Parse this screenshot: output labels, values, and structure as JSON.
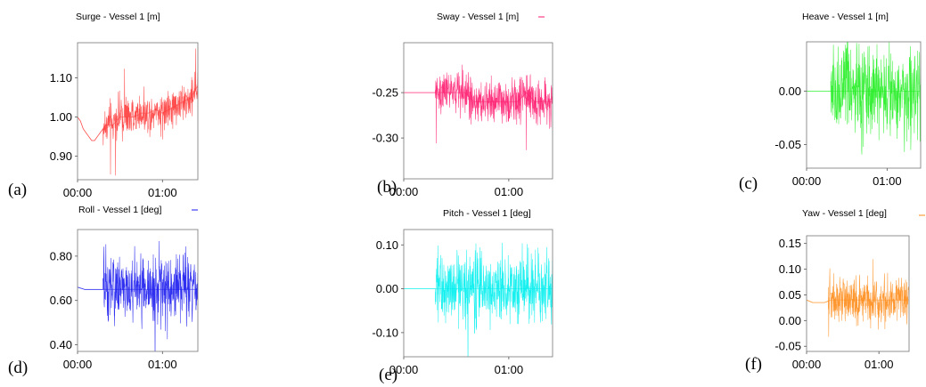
{
  "chart_data": [
    {
      "type": "line",
      "panel_label": "(a)",
      "title": "Surge - Vessel 1 [m]",
      "xlabel": "",
      "ylabel": "",
      "xlim": [
        0,
        85
      ],
      "ylim": [
        0.84,
        1.19
      ],
      "xticks": [
        "00:00",
        "01:00"
      ],
      "yticks": [
        0.9,
        1.0,
        1.1
      ],
      "ytick_labels": [
        "0.90",
        "1.00",
        "1.10"
      ],
      "color": "#ff3b3b",
      "grid": false,
      "legend": "none",
      "series": [
        {
          "x": [
            0,
            2,
            4,
            6,
            8,
            10,
            12,
            14,
            16,
            18,
            20,
            25,
            30,
            35,
            40,
            45,
            50,
            55,
            60,
            65,
            70,
            75,
            80,
            85
          ],
          "y": [
            1.0,
            0.99,
            0.97,
            0.96,
            0.95,
            0.94,
            0.94,
            0.95,
            0.96,
            0.97,
            0.98,
            0.98,
            1.0,
            1.0,
            1.0,
            1.01,
            1.01,
            1.02,
            1.01,
            1.02,
            1.03,
            1.04,
            1.05,
            1.08
          ]
        }
      ]
    },
    {
      "type": "line",
      "panel_label": "(b)",
      "title": "Sway - Vessel 1 [m]",
      "xlabel": "",
      "ylabel": "",
      "xlim": [
        0,
        85
      ],
      "ylim": [
        -0.345,
        -0.195
      ],
      "xticks": [
        "00:00",
        "01:00"
      ],
      "yticks": [
        -0.25,
        -0.3
      ],
      "ytick_labels": [
        "-0.25",
        "-0.30"
      ],
      "color": "#ff1a6e",
      "grid": false,
      "legend": "top-right",
      "series": [
        {
          "x": [
            0,
            5,
            10,
            15,
            20,
            25,
            30,
            35,
            40,
            45,
            50,
            55,
            60,
            65,
            70,
            75,
            80,
            85
          ],
          "y": [
            -0.25,
            -0.25,
            -0.25,
            -0.25,
            -0.25,
            -0.25,
            -0.25,
            -0.25,
            -0.26,
            -0.26,
            -0.26,
            -0.26,
            -0.26,
            -0.26,
            -0.25,
            -0.26,
            -0.26,
            -0.26
          ]
        }
      ]
    },
    {
      "type": "line",
      "panel_label": "(c)",
      "title": "Heave - Vessel 1 [m]",
      "xlabel": "",
      "ylabel": "",
      "xlim": [
        0,
        85
      ],
      "ylim": [
        -0.072,
        0.046
      ],
      "xticks": [
        "00:00",
        "01:00"
      ],
      "yticks": [
        0.0,
        -0.05
      ],
      "ytick_labels": [
        "0.00",
        "-0.05"
      ],
      "color": "#22ee22",
      "grid": false,
      "legend": "none",
      "series": [
        {
          "x": [
            0,
            5,
            10,
            15,
            20,
            25,
            30,
            35,
            40,
            45,
            50,
            55,
            60,
            65,
            70,
            75,
            80,
            85
          ],
          "y": [
            0.0,
            0.0,
            0.0,
            0.0,
            0.0,
            0.0,
            0.0,
            0.0,
            0.0,
            0.0,
            0.0,
            0.0,
            0.0,
            0.0,
            0.0,
            0.0,
            0.0,
            0.0
          ]
        }
      ]
    },
    {
      "type": "line",
      "panel_label": "(d)",
      "title": "Roll - Vessel 1 [deg]",
      "xlabel": "",
      "ylabel": "",
      "xlim": [
        0,
        85
      ],
      "ylim": [
        0.37,
        0.92
      ],
      "xticks": [
        "00:00",
        "01:00"
      ],
      "yticks": [
        0.4,
        0.6,
        0.8
      ],
      "ytick_labels": [
        "0.40",
        "0.60",
        "0.80"
      ],
      "color": "#1a1aee",
      "grid": false,
      "legend": "top-right",
      "series": [
        {
          "x": [
            0,
            5,
            10,
            15,
            20,
            25,
            30,
            35,
            40,
            45,
            50,
            55,
            60,
            65,
            70,
            75,
            80,
            85
          ],
          "y": [
            0.66,
            0.65,
            0.65,
            0.65,
            0.65,
            0.65,
            0.65,
            0.65,
            0.65,
            0.65,
            0.65,
            0.65,
            0.65,
            0.65,
            0.65,
            0.65,
            0.65,
            0.65
          ]
        }
      ]
    },
    {
      "type": "line",
      "panel_label": "(e)",
      "title": "Pitch - Vessel 1 [deg]",
      "xlabel": "",
      "ylabel": "",
      "xlim": [
        0,
        85
      ],
      "ylim": [
        -0.155,
        0.135
      ],
      "xticks": [
        "00:00",
        "01:00"
      ],
      "yticks": [
        0.1,
        0.0,
        -0.1
      ],
      "ytick_labels": [
        "0.10",
        "0.00",
        "-0.10"
      ],
      "color": "#00eeee",
      "grid": false,
      "legend": "none",
      "series": [
        {
          "x": [
            0,
            5,
            10,
            15,
            20,
            25,
            30,
            35,
            40,
            45,
            50,
            55,
            60,
            65,
            70,
            75,
            80,
            85
          ],
          "y": [
            0.0,
            0.0,
            0.0,
            0.0,
            0.0,
            0.0,
            0.0,
            0.0,
            0.0,
            0.0,
            0.0,
            0.0,
            0.0,
            0.0,
            0.0,
            0.0,
            0.0,
            0.0
          ]
        }
      ]
    },
    {
      "type": "line",
      "panel_label": "(f)",
      "title": "Yaw - Vessel 1 [deg]",
      "xlabel": "",
      "ylabel": "",
      "xlim": [
        0,
        85
      ],
      "ylim": [
        -0.06,
        0.165
      ],
      "xticks": [
        "00:00",
        "01:00"
      ],
      "yticks": [
        0.15,
        0.1,
        0.05,
        0.0,
        -0.05
      ],
      "ytick_labels": [
        "0.15",
        "0.10",
        "0.05",
        "0.00",
        "-0.05"
      ],
      "color": "#ff8c1a",
      "grid": false,
      "legend": "top-right",
      "series": [
        {
          "x": [
            0,
            5,
            10,
            15,
            20,
            25,
            30,
            35,
            40,
            45,
            50,
            55,
            60,
            65,
            70,
            75,
            80,
            85
          ],
          "y": [
            0.04,
            0.035,
            0.035,
            0.035,
            0.04,
            0.04,
            0.04,
            0.04,
            0.04,
            0.04,
            0.04,
            0.04,
            0.04,
            0.04,
            0.04,
            0.04,
            0.04,
            0.04
          ]
        }
      ]
    }
  ]
}
